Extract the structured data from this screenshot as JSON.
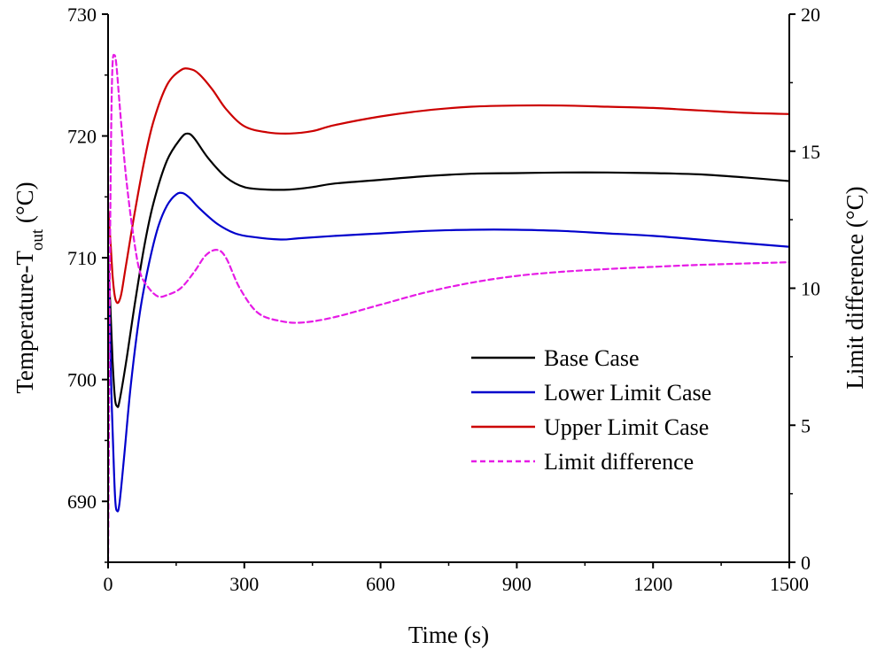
{
  "chart_data": {
    "type": "line",
    "title": "",
    "xlabel": "Time (s)",
    "ylabel": {
      "main": "Temperature-T",
      "sub": "out",
      "unit": " (°C)"
    },
    "y2label": "Limit difference  (°C)",
    "xlim": [
      0,
      1500
    ],
    "ylim": [
      685,
      730
    ],
    "y2lim": [
      0,
      20
    ],
    "xticks": [
      "0",
      "300",
      "600",
      "900",
      "1200",
      "1500"
    ],
    "yticks": [
      "690",
      "700",
      "710",
      "720",
      "730"
    ],
    "y2ticks": [
      "0",
      "5",
      "10",
      "15",
      "20"
    ],
    "grid": false,
    "legend_position": "lower-right",
    "series": [
      {
        "name": "Base Case",
        "axis": "left",
        "color": "#000000",
        "dash": "solid",
        "x": [
          0,
          5,
          10,
          15,
          20,
          25,
          40,
          60,
          80,
          100,
          130,
          160,
          175,
          190,
          220,
          260,
          300,
          350,
          400,
          450,
          500,
          600,
          700,
          800,
          900,
          1000,
          1100,
          1200,
          1300,
          1400,
          1500
        ],
        "y": [
          710,
          706,
          701.5,
          698.5,
          697.8,
          698.2,
          701.5,
          706.5,
          711,
          714.5,
          718,
          719.8,
          720.2,
          719.8,
          718.2,
          716.6,
          715.8,
          715.6,
          715.6,
          715.8,
          716.1,
          716.4,
          716.7,
          716.9,
          716.95,
          717.0,
          717.0,
          716.95,
          716.85,
          716.6,
          716.3
        ]
      },
      {
        "name": "Lower Limit Case",
        "axis": "left",
        "color": "#0000cc",
        "dash": "solid",
        "x": [
          0,
          4,
          8,
          12,
          16,
          20,
          25,
          35,
          50,
          70,
          90,
          110,
          130,
          150,
          165,
          180,
          200,
          240,
          280,
          320,
          380,
          420,
          500,
          600,
          700,
          800,
          900,
          1000,
          1100,
          1200,
          1300,
          1400,
          1500
        ],
        "y": [
          709,
          704,
          698,
          693.5,
          690,
          689.2,
          689.8,
          693.5,
          699.5,
          705.5,
          709.5,
          712.5,
          714.3,
          715.2,
          715.3,
          714.9,
          714.1,
          712.8,
          712.0,
          711.7,
          711.5,
          711.6,
          711.8,
          712.0,
          712.2,
          712.3,
          712.3,
          712.2,
          712.0,
          711.8,
          711.5,
          711.2,
          710.9
        ]
      },
      {
        "name": "Upper Limit Case",
        "axis": "left",
        "color": "#cc0000",
        "dash": "solid",
        "x": [
          0,
          5,
          10,
          15,
          20,
          25,
          30,
          40,
          60,
          80,
          100,
          130,
          160,
          180,
          200,
          230,
          260,
          300,
          350,
          400,
          450,
          500,
          600,
          700,
          800,
          900,
          1000,
          1100,
          1200,
          1300,
          1400,
          1500
        ],
        "y": [
          714,
          711.5,
          708.5,
          706.8,
          706.3,
          706.5,
          707.2,
          709.5,
          714,
          718,
          721.2,
          724.2,
          725.4,
          725.5,
          725.1,
          723.8,
          722.2,
          720.8,
          720.3,
          720.2,
          720.4,
          720.9,
          721.6,
          722.1,
          722.4,
          722.5,
          722.5,
          722.4,
          722.3,
          722.1,
          721.9,
          721.8
        ]
      },
      {
        "name": "Limit difference",
        "axis": "right",
        "color": "#e61be6",
        "dash": "dashed",
        "x": [
          0,
          2,
          4,
          7,
          10,
          14,
          18,
          24,
          30,
          40,
          55,
          70,
          90,
          110,
          130,
          160,
          190,
          215,
          240,
          260,
          290,
          330,
          380,
          430,
          500,
          600,
          700,
          800,
          900,
          1000,
          1100,
          1200,
          1300,
          1400,
          1500
        ],
        "y": [
          0,
          5,
          11,
          16,
          18.2,
          18.5,
          18.2,
          17,
          15.8,
          14,
          12,
          10.6,
          10.0,
          9.7,
          9.75,
          10.0,
          10.6,
          11.2,
          11.4,
          11.1,
          10.0,
          9.1,
          8.8,
          8.75,
          8.95,
          9.4,
          9.85,
          10.2,
          10.45,
          10.6,
          10.7,
          10.78,
          10.85,
          10.9,
          10.95
        ]
      }
    ]
  }
}
